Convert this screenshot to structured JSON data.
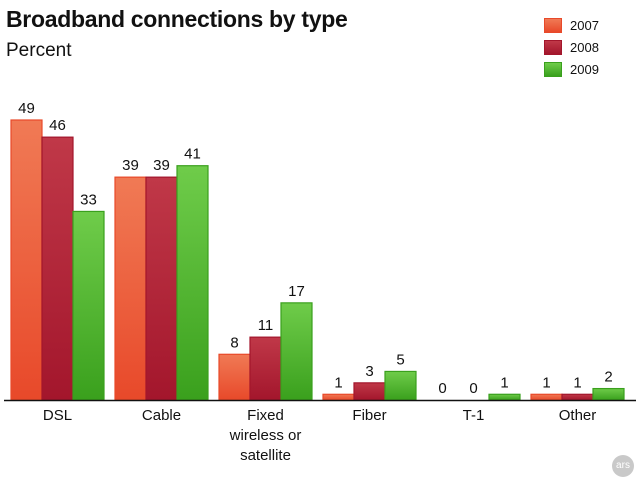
{
  "chart_data": {
    "type": "bar",
    "title": "Broadband connections by type",
    "subtitle": "Percent",
    "categories": [
      [
        "DSL"
      ],
      [
        "Cable"
      ],
      [
        "Fixed",
        "wireless or",
        "satellite"
      ],
      [
        "Fiber"
      ],
      [
        "T-1"
      ],
      [
        "Other"
      ]
    ],
    "series": [
      {
        "name": "2007",
        "values": [
          49,
          39,
          8,
          1,
          0,
          1
        ],
        "color": "#e8492a",
        "color_light": "#f07a55"
      },
      {
        "name": "2008",
        "values": [
          46,
          39,
          11,
          3,
          0,
          1
        ],
        "color": "#a3162c",
        "color_light": "#c03848"
      },
      {
        "name": "2009",
        "values": [
          33,
          41,
          17,
          5,
          1,
          2
        ],
        "color": "#3aa01d",
        "color_light": "#6fcc4a"
      }
    ],
    "ylim": [
      0,
      50
    ],
    "grid": false,
    "legend": "top-right",
    "data_labels": true
  },
  "branding": {
    "logo_text": "ars"
  }
}
